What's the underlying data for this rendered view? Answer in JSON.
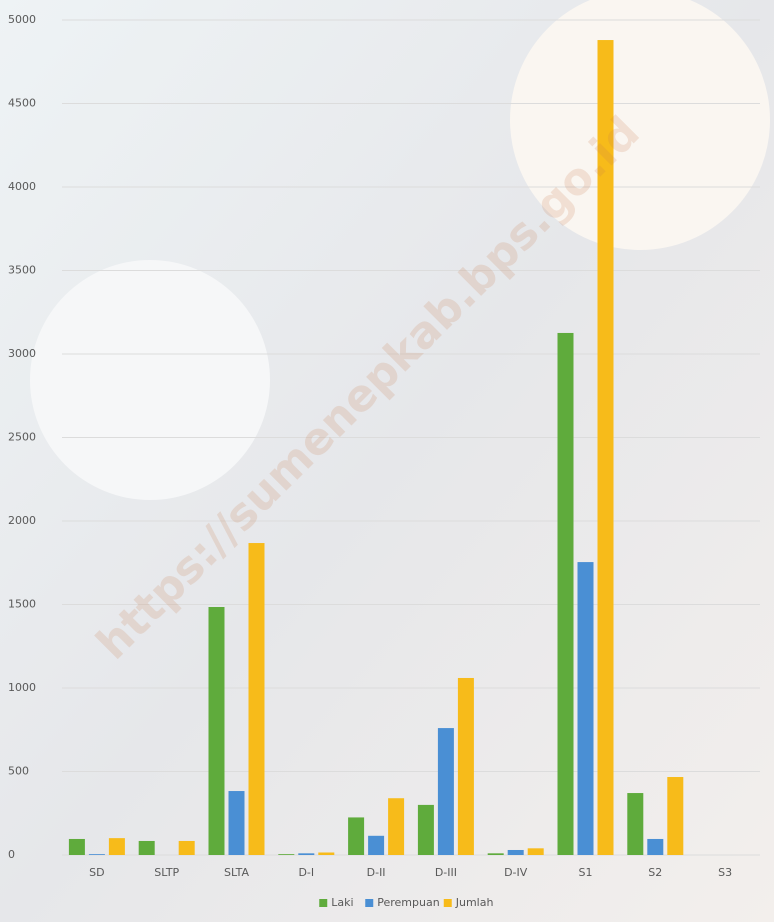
{
  "chart_data": {
    "type": "bar",
    "watermark": "https://sumenepkab.bps.go.id",
    "categories": [
      "SD",
      "SLTP",
      "SLTA",
      "D-I",
      "D-II",
      "D-III",
      "D-IV",
      "S1",
      "S2",
      "S3"
    ],
    "series": [
      {
        "name": "Laki",
        "color": "#5fab3c",
        "values": [
          96,
          84,
          1485,
          5,
          225,
          300,
          10,
          3126,
          371,
          0
        ]
      },
      {
        "name": "Perempuan",
        "color": "#4a8fd4",
        "values": [
          5,
          0,
          383,
          10,
          115,
          760,
          30,
          1754,
          96,
          0
        ]
      },
      {
        "name": "Jumlah",
        "color": "#f7bb1a",
        "values": [
          101,
          84,
          1868,
          15,
          340,
          1060,
          40,
          4880,
          467,
          0
        ]
      }
    ],
    "ylim": [
      0,
      5000
    ],
    "yticks": [
      0,
      500,
      1000,
      1500,
      2000,
      2500,
      3000,
      3500,
      4000,
      4500,
      5000
    ],
    "grid": true,
    "legend": "bottom"
  }
}
